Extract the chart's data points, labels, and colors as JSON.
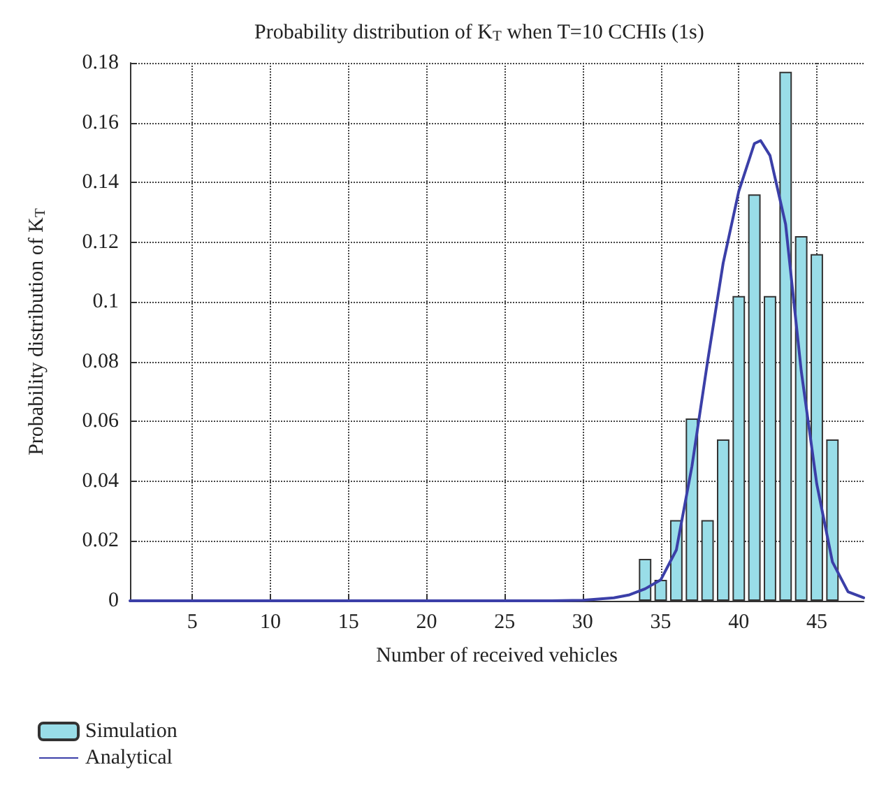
{
  "chart_data": {
    "type": "bar",
    "title": "Probability distribution of K$_{T}$ when T=10 CCHIs (1s)",
    "xlabel": "Number of received vehicles",
    "ylabel": "Probability distribution of K$_{T}$",
    "series": [
      {
        "name": "Simulation",
        "color": "#99dde8",
        "x": [
          34,
          35,
          36,
          37,
          38,
          39,
          40,
          41,
          42,
          43,
          44,
          45,
          46
        ],
        "values": [
          0.014,
          0.007,
          0.027,
          0.061,
          0.027,
          0.054,
          0.102,
          0.136,
          0.102,
          0.177,
          0.122,
          0.116,
          0.054
        ]
      },
      {
        "name": "Analytical",
        "type": "line",
        "color": "#3b3fa8",
        "x": [
          1,
          10,
          20,
          28,
          30,
          32,
          33,
          34,
          35,
          36,
          37,
          38,
          39,
          40,
          41,
          41.4,
          42,
          43,
          44,
          45,
          46,
          47,
          48
        ],
        "values": [
          0,
          0,
          0,
          0,
          0.0002,
          0.001,
          0.002,
          0.004,
          0.007,
          0.017,
          0.045,
          0.08,
          0.113,
          0.137,
          0.153,
          0.154,
          0.149,
          0.126,
          0.077,
          0.039,
          0.013,
          0.003,
          0.001
        ]
      }
    ],
    "xlim": [
      1,
      48
    ],
    "xticks": [
      5,
      10,
      15,
      20,
      25,
      30,
      35,
      40,
      45
    ],
    "ylim": [
      0,
      0.18
    ],
    "yticks": [
      0,
      0.02,
      0.04,
      0.06,
      0.08,
      0.1,
      0.12,
      0.14,
      0.16,
      0.18
    ],
    "grid": true,
    "legend": "bottom left",
    "marker": "none",
    "line_style": "solid"
  }
}
